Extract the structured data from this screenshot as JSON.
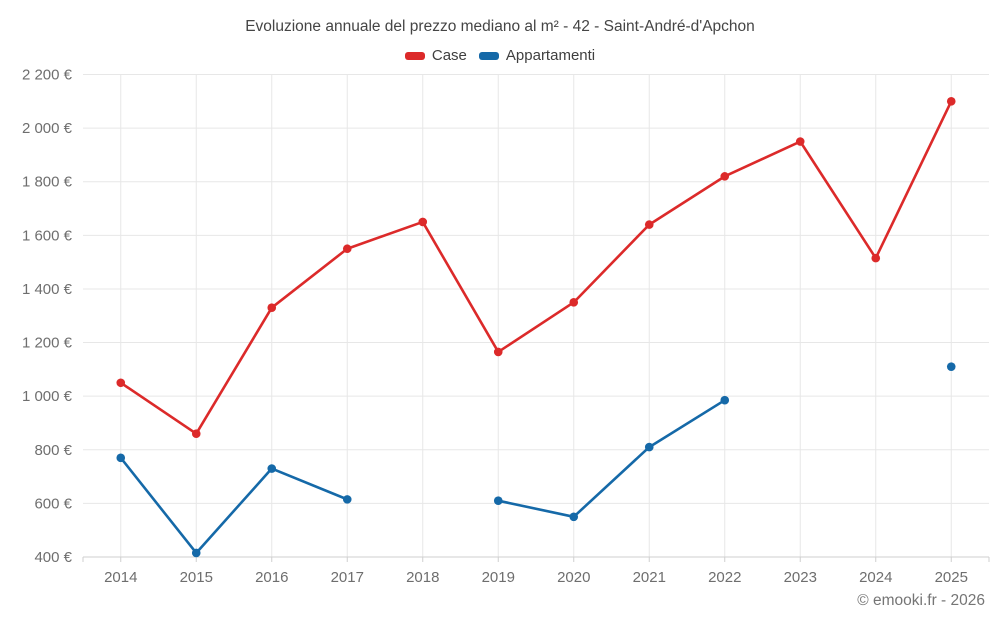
{
  "chart_data": {
    "type": "line",
    "title": "Evoluzione annuale del prezzo mediano al m² - 42 - Saint-André-d'Apchon",
    "categories": [
      "2014",
      "2015",
      "2016",
      "2017",
      "2018",
      "2019",
      "2020",
      "2021",
      "2022",
      "2023",
      "2024",
      "2025"
    ],
    "series": [
      {
        "name": "Case",
        "color": "#dc2a2a",
        "values": [
          1050,
          860,
          1330,
          1550,
          1650,
          1165,
          1350,
          1640,
          1820,
          1950,
          1515,
          2100
        ]
      },
      {
        "name": "Appartamenti",
        "color": "#1569a8",
        "values": [
          770,
          415,
          730,
          615,
          null,
          610,
          550,
          810,
          985,
          null,
          null,
          1110
        ]
      }
    ],
    "ylim": [
      400,
      2200
    ],
    "ytick_values": [
      400,
      600,
      800,
      1000,
      1200,
      1400,
      1600,
      1800,
      2000,
      2200
    ],
    "ytick_labels": [
      "400 €",
      "600 €",
      "800 €",
      "1 000 €",
      "1 200 €",
      "1 400 €",
      "1 600 €",
      "1 800 €",
      "2 000 €",
      "2 200 €"
    ],
    "grid": true,
    "legend_position": "top",
    "currency": "€",
    "colors": {
      "gridline": "#e7e7e7",
      "axis_line": "#cfcfcf",
      "label_text": "#6e6e6e"
    }
  },
  "footer": {
    "copyright": "© emooki.fr - 2026"
  }
}
